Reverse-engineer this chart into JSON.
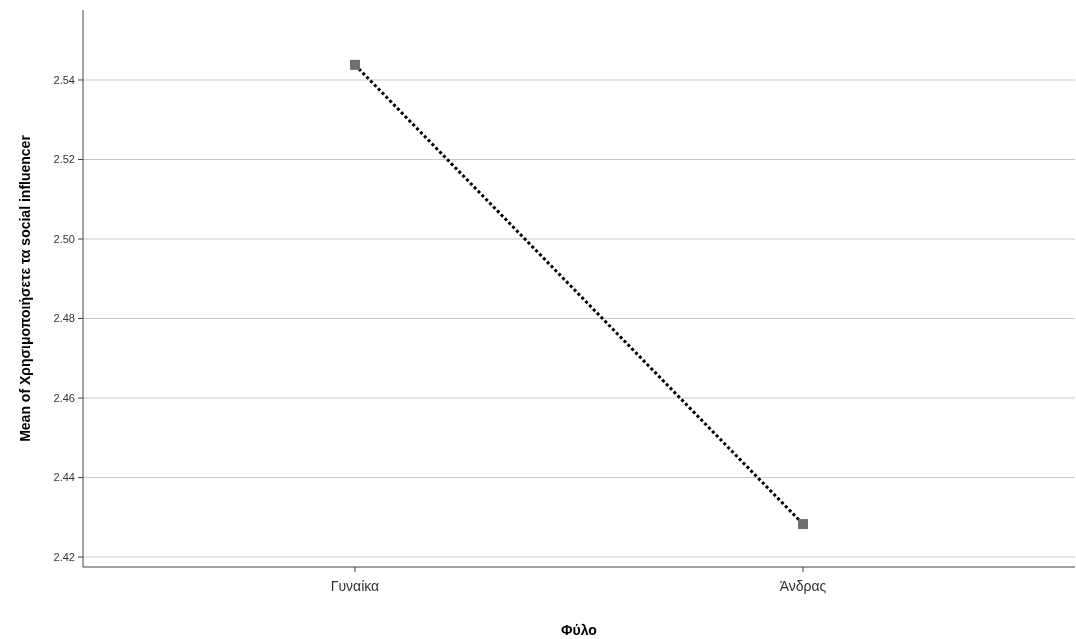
{
  "chart_data": {
    "type": "line",
    "xlabel": "Φύλο",
    "ylabel": "Mean of Χρησιμοποιήσετε τα social influencer",
    "categories": [
      "Γυναίκα",
      "Άνδρας"
    ],
    "series": [
      {
        "color": "#000000",
        "colors": [
          "#707070",
          "#707070"
        ],
        "values": [
          2.5438,
          2.4283
        ]
      }
    ],
    "ylim": [
      2.4175,
      2.5576
    ],
    "yticks": [
      2.42,
      2.44,
      2.46,
      2.48,
      {
        "value": 2.5,
        "label": "2.50"
      },
      2.52,
      2.54
    ],
    "grid": "y",
    "marker": "square",
    "line_style": "dotted"
  }
}
